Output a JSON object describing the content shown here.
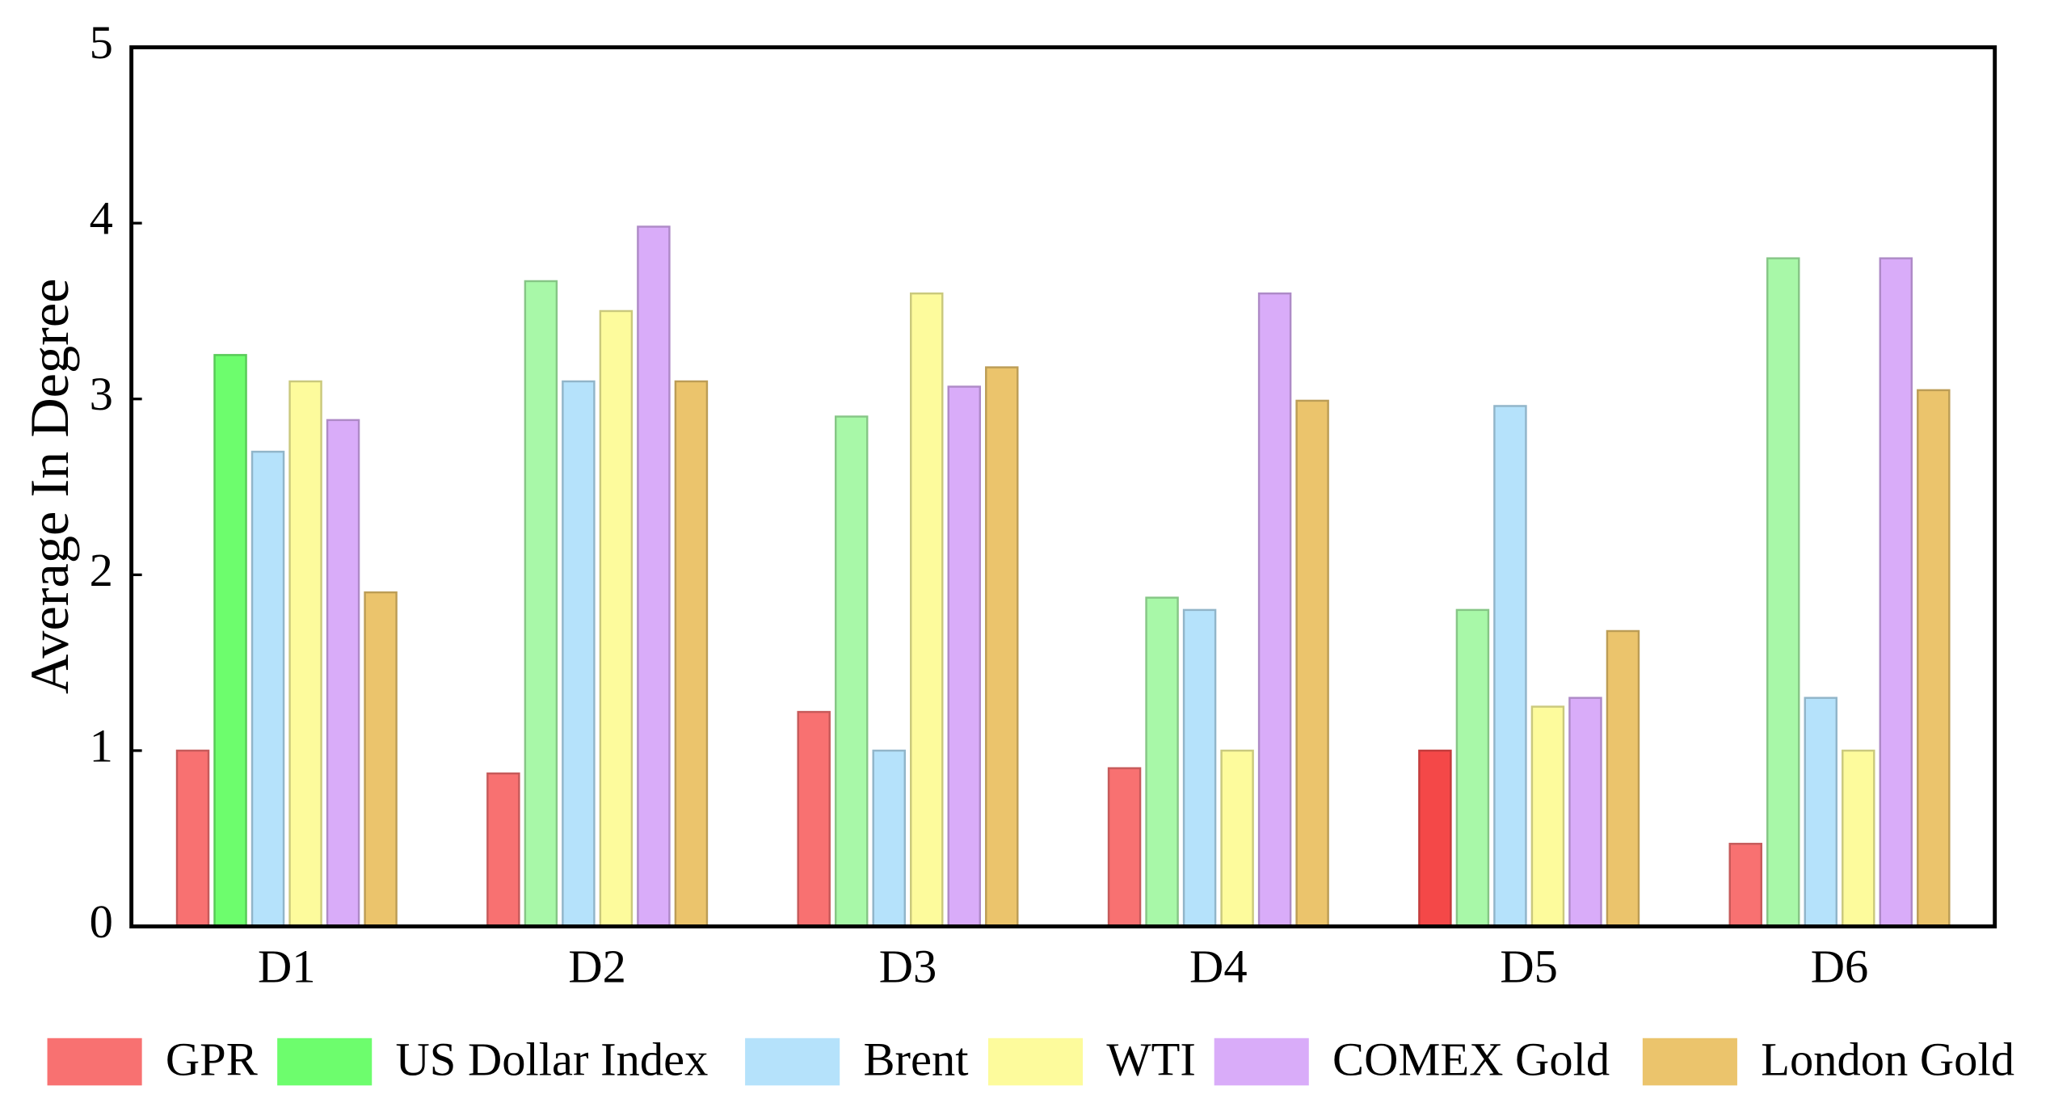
{
  "chart_data": {
    "type": "bar",
    "y_label": "Average In Degree",
    "categories": [
      "D1",
      "D2",
      "D3",
      "D4",
      "D5",
      "D6"
    ],
    "series": [
      {
        "name": "GPR",
        "color": "#f87171",
        "colors": [
          "#f87171",
          "#f87171",
          "#f87171",
          "#f87171",
          "#f44848",
          "#f87171"
        ],
        "values": [
          1.0,
          0.87,
          1.22,
          0.9,
          1.0,
          0.47
        ]
      },
      {
        "name": "US Dollar Index",
        "color": "#6dfd6d",
        "colors": [
          "#6dfd6d",
          "#a8f8a8",
          "#a8f8a8",
          "#a8f8a8",
          "#a8f8a8",
          "#a8f8a8"
        ],
        "values": [
          3.25,
          3.67,
          2.9,
          1.87,
          1.8,
          3.8
        ]
      },
      {
        "name": "Brent",
        "color": "#b5e2fb",
        "values": [
          2.7,
          3.1,
          1.0,
          1.8,
          2.96,
          1.3
        ]
      },
      {
        "name": "WTI",
        "color": "#fdfb9c",
        "values": [
          3.1,
          3.5,
          3.6,
          1.0,
          1.25,
          1.0
        ]
      },
      {
        "name": "COMEX Gold",
        "color": "#d9acf9",
        "values": [
          2.88,
          3.98,
          3.07,
          3.6,
          1.3,
          3.8
        ]
      },
      {
        "name": "London Gold",
        "color": "#ebc46c",
        "values": [
          1.9,
          3.1,
          3.18,
          2.99,
          1.68,
          3.05
        ]
      }
    ],
    "ylim": [
      0,
      5
    ],
    "yticks": [
      0,
      1,
      2,
      3,
      4,
      5
    ],
    "grid": false,
    "legend": "bottom"
  }
}
